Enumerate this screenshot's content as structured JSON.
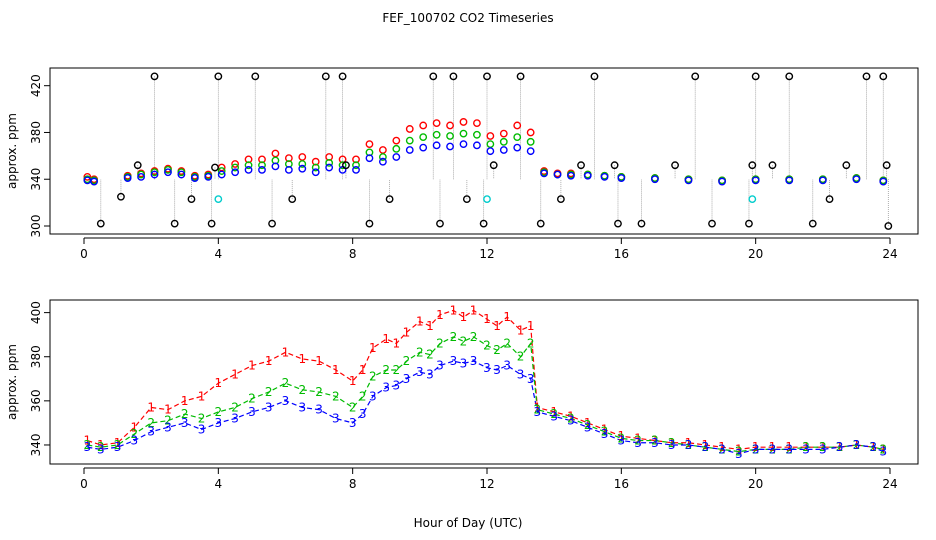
{
  "figure": {
    "title": "FEF_100702  CO2 Timeseries",
    "xlabel": "Hour of Day (UTC)"
  },
  "colors": {
    "series1": "#ff0000",
    "series2": "#00bb00",
    "series3": "#0000ff",
    "flagged": "#000000",
    "cal": "#00cccc",
    "drop_line": "#999999"
  },
  "chart_data": [
    {
      "type": "scatter",
      "ylabel": "approx. ppm",
      "xlim": [
        0,
        24
      ],
      "ylim": [
        300,
        430
      ],
      "x_ticks": [
        0,
        4,
        8,
        12,
        16,
        20,
        24
      ],
      "y_ticks": [
        300,
        340,
        380,
        420
      ],
      "y_tick_labels": [
        "300",
        "340",
        "380",
        "420"
      ],
      "marker": "open-circle",
      "series": [
        {
          "key": "1",
          "color": "red",
          "x": [
            0.1,
            0.3,
            1.3,
            1.7,
            2.1,
            2.5,
            2.9,
            3.3,
            3.7,
            4.1,
            4.5,
            4.9,
            5.3,
            5.7,
            6.1,
            6.5,
            6.9,
            7.3,
            7.7,
            8.1,
            8.5,
            8.9,
            9.3,
            9.7,
            10.1,
            10.5,
            10.9,
            11.3,
            11.7,
            12.1,
            12.5,
            12.9,
            13.3,
            13.7,
            14.1,
            14.5,
            15.0,
            15.5,
            16.0,
            17.0,
            18.0,
            19.0,
            20.0,
            21.0,
            22.0,
            23.0,
            23.8
          ],
          "y": [
            342,
            340,
            343,
            345,
            347,
            349,
            347,
            343,
            344,
            350,
            353,
            357,
            357,
            362,
            358,
            359,
            355,
            359,
            357,
            357,
            370,
            365,
            373,
            383,
            386,
            388,
            386,
            389,
            388,
            377,
            379,
            386,
            380,
            347,
            345,
            345,
            344,
            343,
            342,
            341,
            340,
            339,
            340,
            340,
            340,
            341,
            339
          ]
        },
        {
          "key": "2",
          "color": "green",
          "x": [
            0.1,
            0.3,
            1.3,
            1.7,
            2.1,
            2.5,
            2.9,
            3.3,
            3.7,
            4.1,
            4.5,
            4.9,
            5.3,
            5.7,
            6.1,
            6.5,
            6.9,
            7.3,
            7.7,
            8.1,
            8.5,
            8.9,
            9.3,
            9.7,
            10.1,
            10.5,
            10.9,
            11.3,
            11.7,
            12.1,
            12.5,
            12.9,
            13.3,
            13.7,
            14.1,
            14.5,
            15.0,
            15.5,
            16.0,
            17.0,
            18.0,
            19.0,
            20.0,
            21.0,
            22.0,
            23.0,
            23.8
          ],
          "y": [
            340,
            339,
            342,
            344,
            346,
            348,
            346,
            342,
            343,
            347,
            350,
            352,
            352,
            356,
            353,
            353,
            350,
            354,
            352,
            352,
            363,
            359,
            366,
            373,
            376,
            378,
            377,
            379,
            378,
            370,
            372,
            376,
            372,
            346,
            344,
            344,
            344,
            343,
            342,
            341,
            340,
            339,
            340,
            340,
            340,
            341,
            339
          ]
        },
        {
          "key": "3",
          "color": "blue",
          "x": [
            0.1,
            0.3,
            1.3,
            1.7,
            2.1,
            2.5,
            2.9,
            3.3,
            3.7,
            4.1,
            4.5,
            4.9,
            5.3,
            5.7,
            6.1,
            6.5,
            6.9,
            7.3,
            7.7,
            8.1,
            8.5,
            8.9,
            9.3,
            9.7,
            10.1,
            10.5,
            10.9,
            11.3,
            11.7,
            12.1,
            12.5,
            12.9,
            13.3,
            13.7,
            14.1,
            14.5,
            15.0,
            15.5,
            16.0,
            17.0,
            18.0,
            19.0,
            20.0,
            21.0,
            22.0,
            23.0,
            23.8
          ],
          "y": [
            339,
            338,
            341,
            342,
            344,
            346,
            344,
            341,
            342,
            344,
            346,
            348,
            348,
            351,
            348,
            349,
            346,
            350,
            348,
            348,
            358,
            355,
            359,
            365,
            367,
            369,
            368,
            370,
            369,
            364,
            365,
            367,
            364,
            345,
            344,
            343,
            343,
            342,
            341,
            340,
            339,
            338,
            339,
            339,
            339,
            340,
            338
          ]
        },
        {
          "key": "flagged",
          "color": "black",
          "x": [
            0.5,
            1.1,
            1.6,
            2.1,
            2.7,
            3.2,
            3.8,
            3.9,
            4.0,
            5.1,
            5.6,
            6.2,
            7.2,
            7.7,
            7.8,
            8.5,
            9.1,
            10.4,
            10.6,
            11.0,
            11.4,
            11.9,
            12.0,
            12.2,
            13.0,
            13.6,
            14.2,
            14.8,
            15.2,
            15.8,
            15.9,
            16.6,
            17.6,
            18.2,
            18.7,
            19.8,
            19.9,
            20.0,
            20.5,
            21.0,
            21.7,
            22.2,
            22.7,
            23.3,
            23.8,
            23.9,
            23.95
          ],
          "y": [
            302,
            325,
            352,
            428,
            302,
            323,
            302,
            350,
            428,
            428,
            302,
            323,
            428,
            428,
            352,
            302,
            323,
            428,
            302,
            428,
            323,
            302,
            428,
            352,
            428,
            302,
            323,
            352,
            428,
            352,
            302,
            302,
            352,
            428,
            302,
            302,
            352,
            428,
            352,
            428,
            302,
            323,
            352,
            428,
            428,
            352,
            300
          ]
        },
        {
          "key": "cal",
          "color": "cyan",
          "x": [
            4.0,
            12.0,
            19.9
          ],
          "y": [
            323,
            323,
            323
          ]
        }
      ]
    },
    {
      "type": "line",
      "ylabel": "approx. ppm",
      "xlim": [
        0,
        24
      ],
      "ylim": [
        335,
        403
      ],
      "x_ticks": [
        0,
        4,
        8,
        12,
        16,
        20,
        24
      ],
      "y_ticks": [
        340,
        360,
        380,
        400
      ],
      "y_tick_labels": [
        "340",
        "360",
        "380",
        "400"
      ],
      "markers": "series digits 1, 2, 3",
      "series": [
        {
          "label": "1",
          "color": "red",
          "x": [
            0.1,
            0.5,
            1.0,
            1.5,
            2.0,
            2.5,
            3.0,
            3.5,
            4.0,
            4.5,
            5.0,
            5.5,
            6.0,
            6.5,
            7.0,
            7.5,
            8.0,
            8.3,
            8.6,
            9.0,
            9.3,
            9.6,
            10.0,
            10.3,
            10.6,
            11.0,
            11.3,
            11.6,
            12.0,
            12.3,
            12.6,
            13.0,
            13.3,
            13.5,
            14.0,
            14.5,
            15.0,
            15.5,
            16.0,
            16.5,
            17.0,
            17.5,
            18.0,
            18.5,
            19.0,
            19.5,
            20.0,
            20.5,
            21.0,
            21.5,
            22.0,
            22.5,
            23.0,
            23.5,
            23.8
          ],
          "y": [
            342,
            340,
            341,
            348,
            357,
            356,
            360,
            362,
            368,
            372,
            376,
            378,
            382,
            379,
            378,
            374,
            369,
            374,
            384,
            388,
            386,
            391,
            396,
            394,
            399,
            401,
            398,
            401,
            397,
            394,
            398,
            392,
            394,
            357,
            355,
            353,
            350,
            347,
            344,
            343,
            342,
            341,
            341,
            340,
            339,
            338,
            339,
            339,
            339,
            339,
            339,
            339,
            340,
            339,
            338
          ]
        },
        {
          "label": "2",
          "color": "green",
          "x": [
            0.1,
            0.5,
            1.0,
            1.5,
            2.0,
            2.5,
            3.0,
            3.5,
            4.0,
            4.5,
            5.0,
            5.5,
            6.0,
            6.5,
            7.0,
            7.5,
            8.0,
            8.3,
            8.6,
            9.0,
            9.3,
            9.6,
            10.0,
            10.3,
            10.6,
            11.0,
            11.3,
            11.6,
            12.0,
            12.3,
            12.6,
            13.0,
            13.3,
            13.5,
            14.0,
            14.5,
            15.0,
            15.5,
            16.0,
            16.5,
            17.0,
            17.5,
            18.0,
            18.5,
            19.0,
            19.5,
            20.0,
            20.5,
            21.0,
            21.5,
            22.0,
            22.5,
            23.0,
            23.5,
            23.8
          ],
          "y": [
            340,
            339,
            340,
            345,
            350,
            351,
            354,
            352,
            355,
            357,
            361,
            364,
            368,
            365,
            364,
            362,
            357,
            362,
            371,
            374,
            374,
            378,
            382,
            381,
            386,
            389,
            387,
            389,
            385,
            383,
            386,
            380,
            386,
            356,
            354,
            352,
            349,
            346,
            343,
            342,
            342,
            341,
            340,
            339,
            338,
            337,
            338,
            338,
            338,
            339,
            339,
            339,
            340,
            339,
            338
          ]
        },
        {
          "label": "3",
          "color": "blue",
          "x": [
            0.1,
            0.5,
            1.0,
            1.5,
            2.0,
            2.5,
            3.0,
            3.5,
            4.0,
            4.5,
            5.0,
            5.5,
            6.0,
            6.5,
            7.0,
            7.5,
            8.0,
            8.3,
            8.6,
            9.0,
            9.3,
            9.6,
            10.0,
            10.3,
            10.6,
            11.0,
            11.3,
            11.6,
            12.0,
            12.3,
            12.6,
            13.0,
            13.3,
            13.5,
            14.0,
            14.5,
            15.0,
            15.5,
            16.0,
            16.5,
            17.0,
            17.5,
            18.0,
            18.5,
            19.0,
            19.5,
            20.0,
            20.5,
            21.0,
            21.5,
            22.0,
            22.5,
            23.0,
            23.5,
            23.8
          ],
          "y": [
            339,
            338,
            339,
            342,
            346,
            348,
            350,
            347,
            350,
            352,
            355,
            357,
            360,
            357,
            356,
            352,
            350,
            354,
            362,
            366,
            367,
            370,
            373,
            372,
            376,
            378,
            377,
            378,
            375,
            374,
            376,
            372,
            370,
            355,
            353,
            351,
            348,
            345,
            342,
            341,
            341,
            340,
            340,
            339,
            338,
            336,
            338,
            338,
            338,
            338,
            338,
            339,
            340,
            339,
            337
          ]
        }
      ]
    }
  ]
}
